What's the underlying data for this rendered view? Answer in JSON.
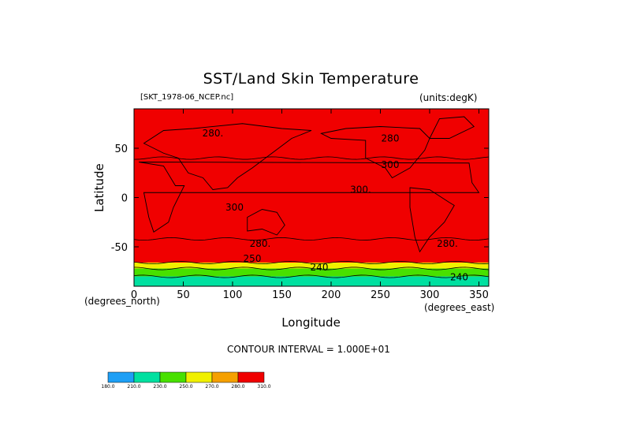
{
  "chart_data": {
    "type": "heatmap",
    "title": "SST/Land Skin Temperature",
    "dataset_label": "[SKT_1978-06_NCEP.nc]",
    "units_label": "(units:degK)",
    "xlabel": "Longitude",
    "ylabel": "Latitude",
    "x_units": "(degrees_east)",
    "y_units": "(degrees_north)",
    "xlim": [
      0,
      360
    ],
    "ylim": [
      -90,
      90
    ],
    "x_ticks": [
      0,
      50,
      100,
      150,
      200,
      250,
      300,
      350
    ],
    "y_ticks": [
      50,
      0,
      -50
    ],
    "contour_interval_text": "CONTOUR INTERVAL = 1.000E+01",
    "contour_labels": [
      {
        "text": "280.",
        "lon": 80,
        "lat": 62
      },
      {
        "text": "280",
        "lon": 260,
        "lat": 57
      },
      {
        "text": "300",
        "lon": 260,
        "lat": 30
      },
      {
        "text": "300.",
        "lon": 230,
        "lat": 5
      },
      {
        "text": "300",
        "lon": 102,
        "lat": -13
      },
      {
        "text": "280.",
        "lon": 128,
        "lat": -50
      },
      {
        "text": "280.",
        "lon": 318,
        "lat": -50
      },
      {
        "text": "250",
        "lon": 120,
        "lat": -65
      },
      {
        "text": "240",
        "lon": 188,
        "lat": -74
      },
      {
        "text": "240",
        "lon": 330,
        "lat": -84
      }
    ],
    "bands": [
      {
        "lat_from": -90,
        "lat_to": -80,
        "value": 220
      },
      {
        "lat_from": -80,
        "lat_to": -72,
        "value": 240
      },
      {
        "lat_from": -72,
        "lat_to": -66,
        "value": 260
      },
      {
        "lat_from": -66,
        "lat_to": -42,
        "value": 280
      },
      {
        "lat_from": -42,
        "lat_to": 40,
        "value": 300
      },
      {
        "lat_from": 40,
        "lat_to": 90,
        "value": 280
      }
    ],
    "colorbar": {
      "ticks": [
        "180.0",
        "210.0",
        "230.0",
        "250.0",
        "270.0",
        "280.0",
        "310.0"
      ],
      "colors": [
        "#1e9ff5",
        "#00e0a0",
        "#48e000",
        "#f0f000",
        "#f5a000",
        "#f00000"
      ]
    },
    "grid": false
  }
}
